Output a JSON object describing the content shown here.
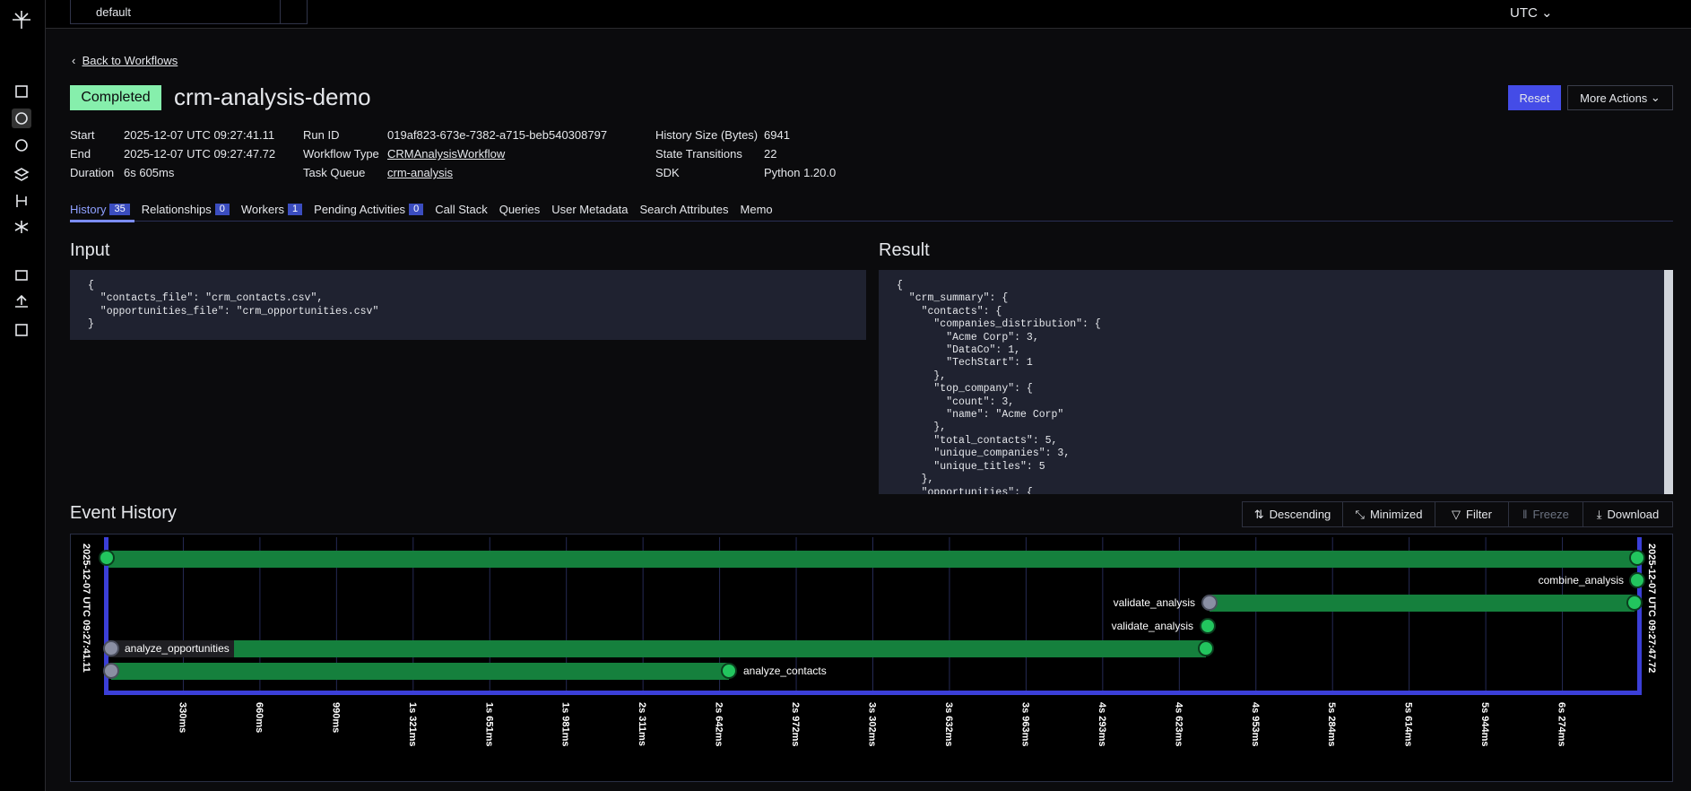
{
  "topbar": {
    "namespace": "default",
    "timezone": "UTC"
  },
  "back_link": "Back to Workflows",
  "workflow": {
    "status": "Completed",
    "id": "crm-analysis-demo"
  },
  "actions": [
    "Reset",
    "More Actions"
  ],
  "details": [
    [
      {
        "label": "Start",
        "value": "2025-12-07 UTC 09:27:41.11"
      },
      {
        "label": "End",
        "value": "2025-12-07 UTC 09:27:47.72"
      },
      {
        "label": "Duration",
        "value": "6s 605ms"
      }
    ],
    [
      {
        "label": "Run ID",
        "value": "019af823-673e-7382-a715-beb540308797"
      },
      {
        "label": "Workflow Type",
        "value": "CRMAnalysisWorkflow"
      },
      {
        "label": "Task Queue",
        "value": "crm-analysis"
      }
    ],
    [
      {
        "label": "History Size (Bytes)",
        "value": 6941
      },
      {
        "label": "State Transitions",
        "value": 22
      },
      {
        "label": "SDK",
        "value": "Python 1.20.0"
      }
    ]
  ],
  "tabs": [
    {
      "label": "History",
      "count": 35
    },
    {
      "label": "Relationships",
      "count": 0
    },
    {
      "label": "Workers",
      "count": 1
    },
    {
      "label": "Pending Activities",
      "count": 0
    },
    {
      "label": "Call Stack"
    },
    {
      "label": "Queries"
    },
    {
      "label": "User Metadata"
    },
    {
      "label": "Search Attributes"
    },
    {
      "label": "Memo"
    }
  ],
  "input": {
    "title": "Input",
    "lines": [
      "{",
      "  \"contacts_file\": \"crm_contacts.csv\",",
      "  \"opportunities_file\": \"crm_opportunities.csv\"",
      "}"
    ]
  },
  "result": {
    "title": "Result",
    "lines": [
      "{",
      "  \"crm_summary\": {",
      "    \"contacts\": {",
      "      \"companies_distribution\": {",
      "        \"Acme Corp\": 3,",
      "        \"DataCo\": 1,",
      "        \"TechStart\": 1",
      "      },",
      "      \"top_company\": {",
      "        \"count\": 3,",
      "        \"name\": \"Acme Corp\"",
      "      },",
      "      \"total_contacts\": 5,",
      "      \"unique_companies\": 3,",
      "      \"unique_titles\": 5",
      "    },",
      "    \"opportunities\": {"
    ]
  },
  "event_history": {
    "title": "Event History",
    "controls": [
      "Descending",
      "Minimized",
      "Filter",
      "Freeze",
      "Download"
    ],
    "start": "2025-12-07 UTC 09:27:41.11",
    "end": "2025-12-07 UTC 09:27:47.72",
    "ticks": [
      "330ms",
      "660ms",
      "990ms",
      "1s 321ms",
      "1s 651ms",
      "1s 981ms",
      "2s 311ms",
      "2s 642ms",
      "2s 972ms",
      "3s 302ms",
      "3s 632ms",
      "3s 963ms",
      "4s 293ms",
      "4s 623ms",
      "4s 953ms",
      "5s 284ms",
      "5s 614ms",
      "5s 944ms",
      "6s 274ms"
    ],
    "events": [
      "combine_analysis",
      "validate_analysis",
      "validate_analysis",
      "analyze_opportunities",
      "analyze_contacts"
    ]
  }
}
